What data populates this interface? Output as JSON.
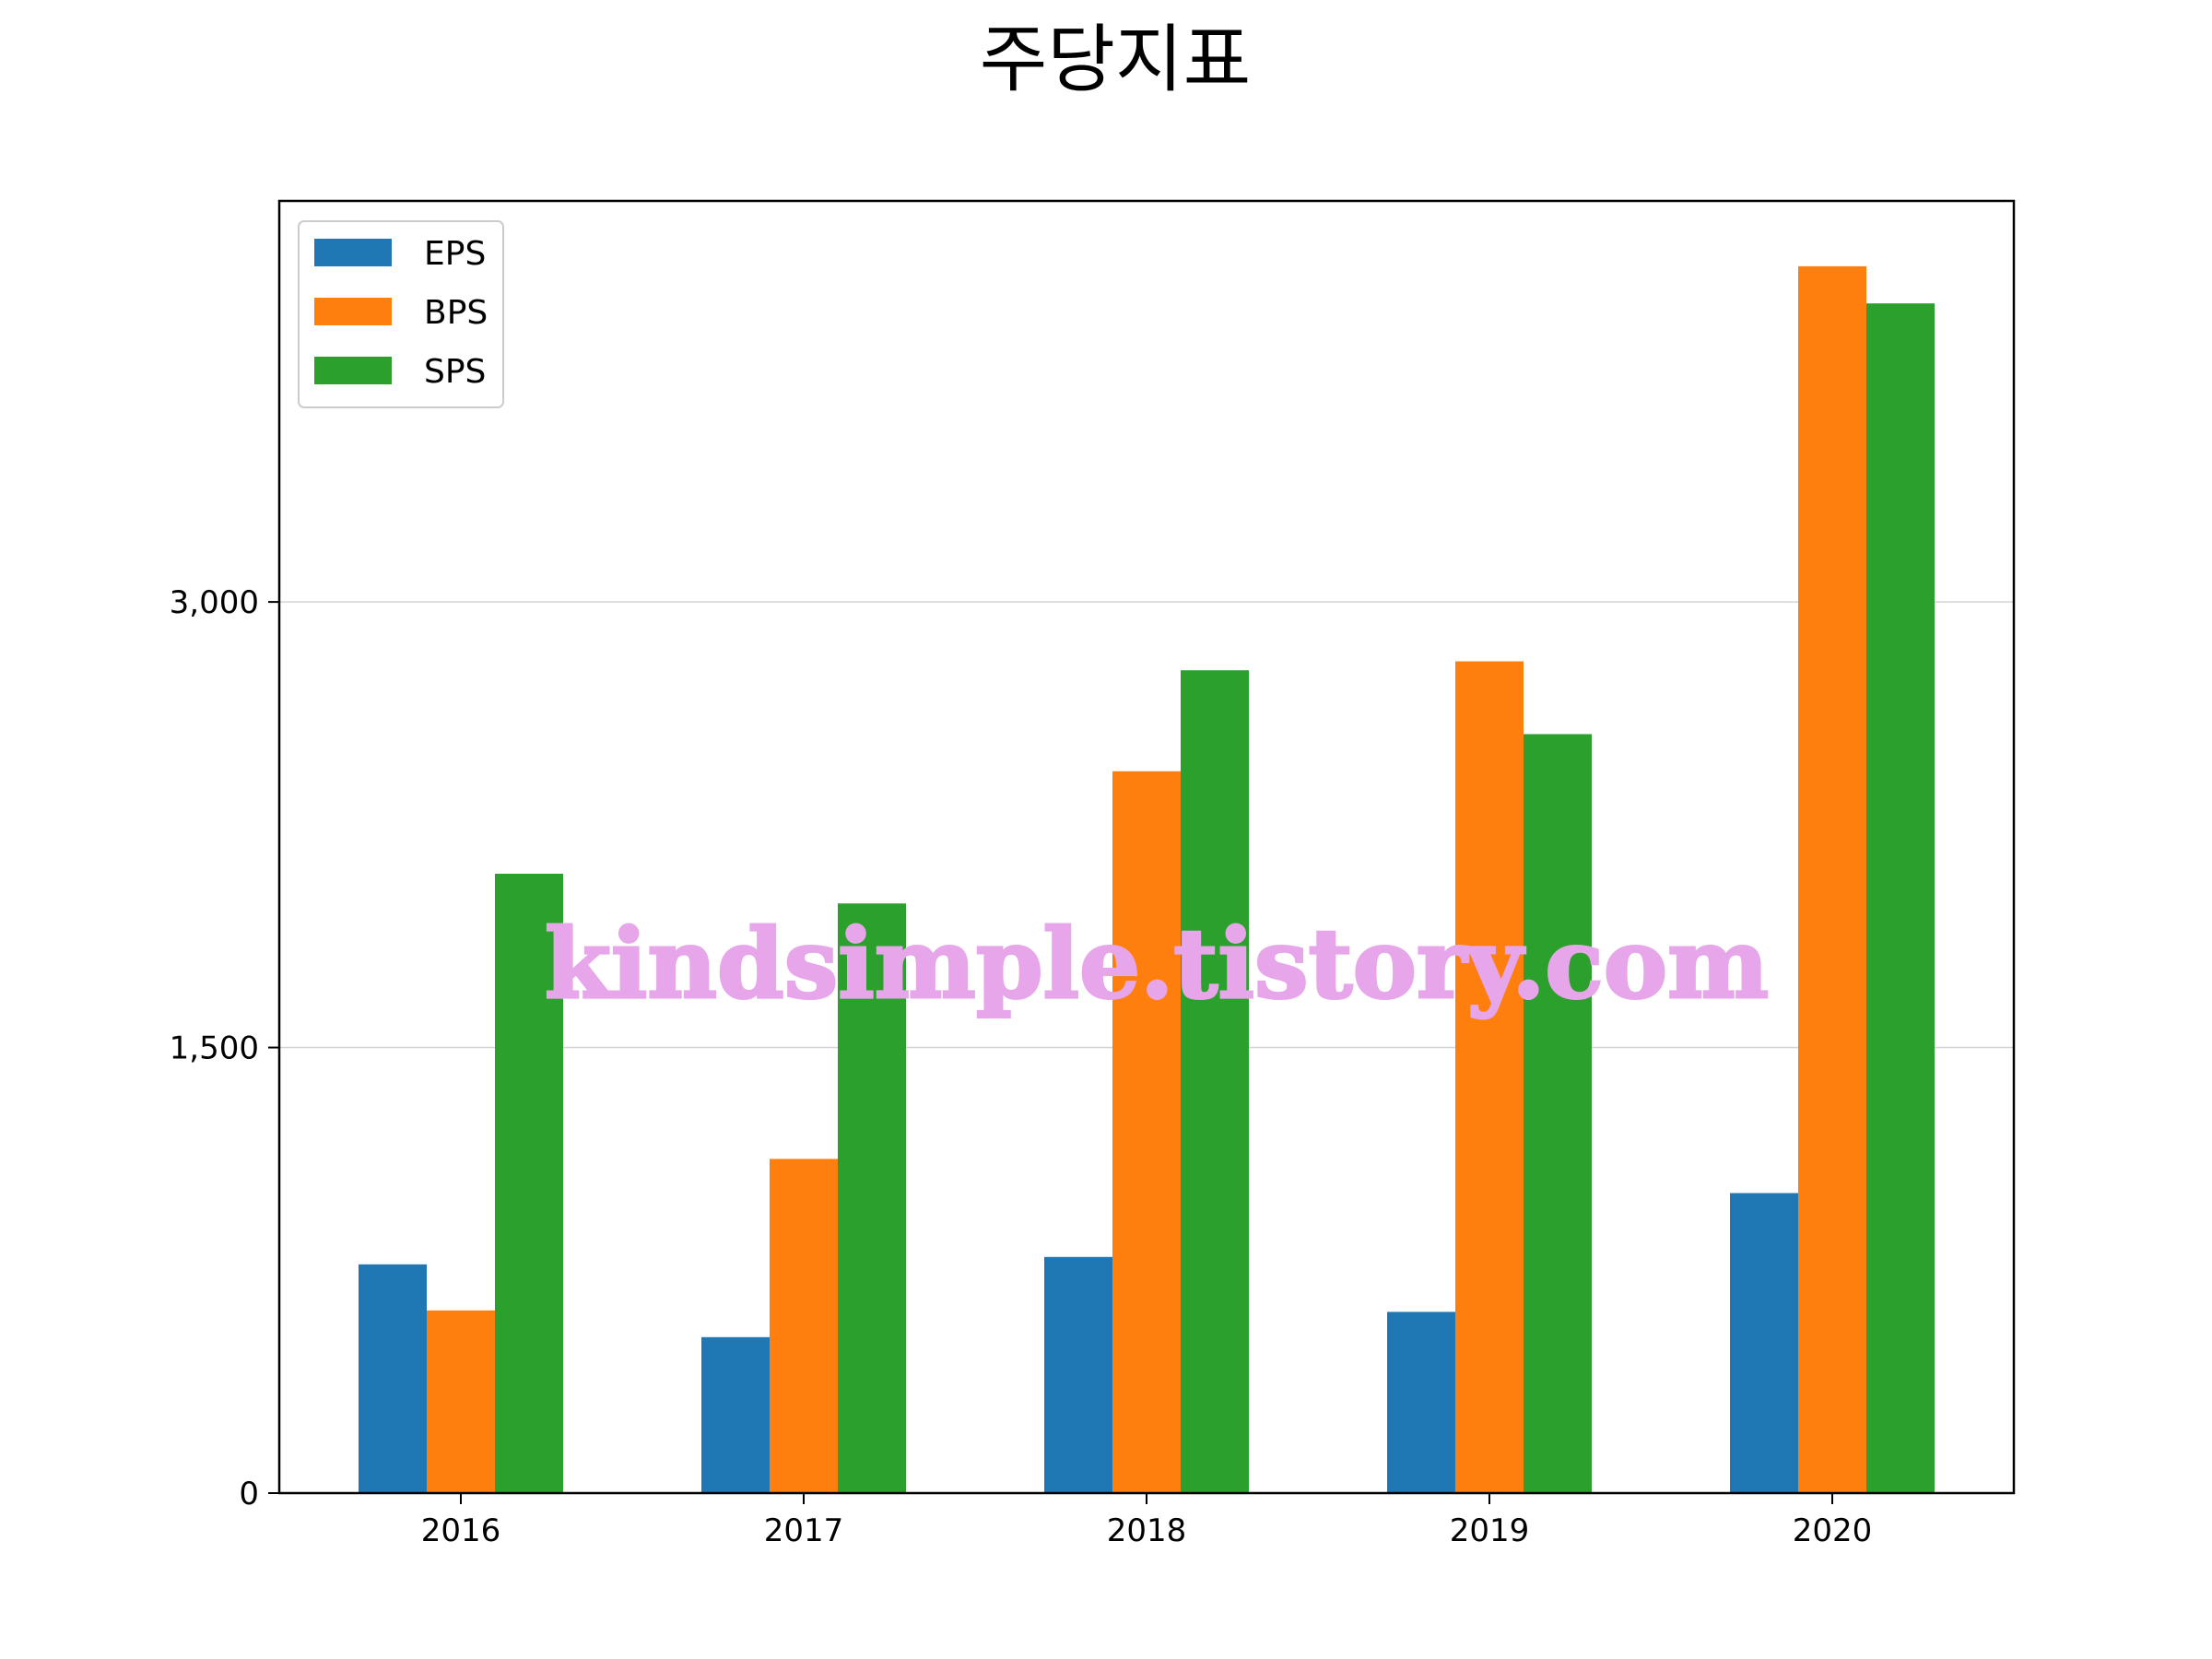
{
  "chart_data": {
    "type": "bar",
    "title": "주당지표",
    "categories": [
      "2016",
      "2017",
      "2018",
      "2019",
      "2020"
    ],
    "series": [
      {
        "name": "EPS",
        "color": "#1f77b4",
        "values": [
          770,
          525,
          795,
          610,
          1010
        ]
      },
      {
        "name": "BPS",
        "color": "#ff7f0e",
        "values": [
          615,
          1125,
          2430,
          2800,
          4130
        ]
      },
      {
        "name": "SPS",
        "color": "#2ca02c",
        "values": [
          2085,
          1985,
          2770,
          2555,
          4005
        ]
      }
    ],
    "ylim": [
      0,
      4350
    ],
    "yticks": [
      0,
      1500,
      3000
    ],
    "ytick_labels": [
      "0",
      "1,500",
      "3,000"
    ],
    "grid": "y",
    "legend": "top-left",
    "watermark": "kindsimple.tistory.com"
  }
}
